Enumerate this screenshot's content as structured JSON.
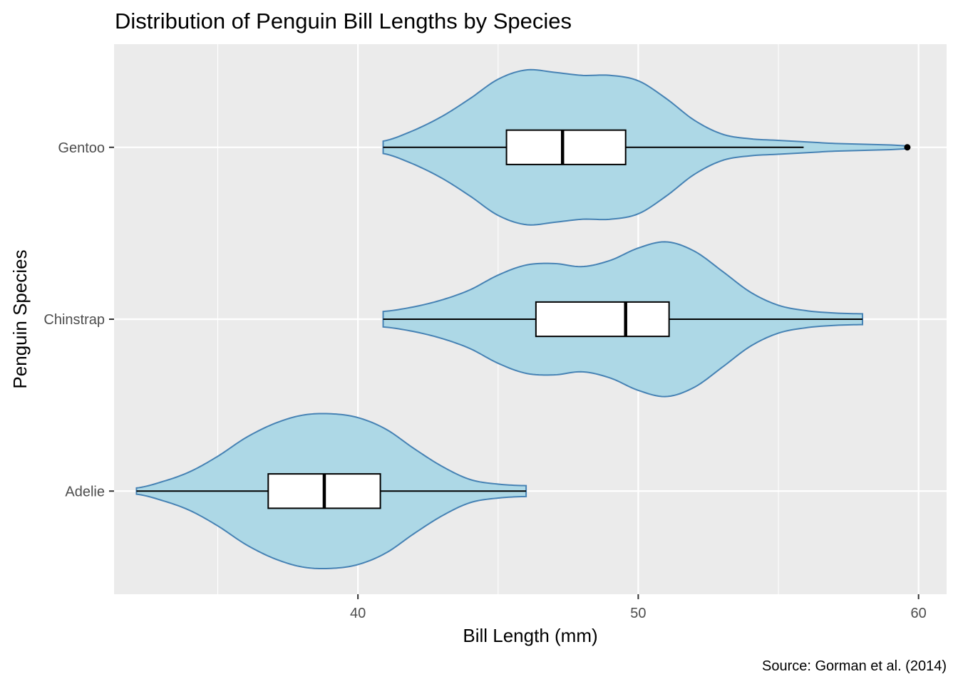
{
  "chart_data": {
    "type": "violin",
    "title": "Distribution of Penguin Bill Lengths by Species",
    "xlabel": "Bill Length (mm)",
    "ylabel": "Penguin Species",
    "caption": "Source: Gorman et al. (2014)",
    "orientation": "horizontal",
    "xlim": [
      31.3,
      61.0
    ],
    "xticks": [
      40,
      50,
      60
    ],
    "categories": [
      "Adelie",
      "Chinstrap",
      "Gentoo"
    ],
    "grid": true,
    "legend": "none",
    "colors": {
      "panel_bg": "#ebebeb",
      "grid": "#ffffff",
      "violin_fill": "#add8e6",
      "violin_stroke": "#4682b4",
      "box_fill": "#ffffff",
      "box_stroke": "#000000"
    },
    "series": [
      {
        "species": "Adelie",
        "box": {
          "whisker_low": 32.1,
          "q1": 36.8,
          "median": 38.8,
          "q3": 40.8,
          "whisker_high": 46.0,
          "outliers": []
        },
        "violin": {
          "min": 32.1,
          "max": 46.0,
          "x": [
            32.1,
            33.0,
            34.0,
            35.0,
            36.0,
            37.0,
            38.0,
            39.0,
            40.0,
            41.0,
            42.0,
            43.0,
            44.0,
            45.0,
            46.0
          ],
          "density": [
            0.04,
            0.12,
            0.25,
            0.45,
            0.69,
            0.87,
            0.98,
            1.0,
            0.95,
            0.8,
            0.55,
            0.32,
            0.15,
            0.09,
            0.07
          ]
        }
      },
      {
        "species": "Chinstrap",
        "box": {
          "whisker_low": 40.9,
          "q1": 46.35,
          "median": 49.55,
          "q3": 51.1,
          "whisker_high": 58.0,
          "outliers": []
        },
        "violin": {
          "min": 40.9,
          "max": 58.0,
          "x": [
            40.9,
            42.0,
            43.0,
            44.0,
            45.0,
            46.0,
            47.0,
            48.0,
            49.0,
            50.0,
            51.0,
            52.0,
            53.0,
            54.0,
            55.0,
            56.0,
            57.0,
            58.0
          ],
          "density": [
            0.1,
            0.16,
            0.25,
            0.38,
            0.57,
            0.7,
            0.72,
            0.68,
            0.76,
            0.92,
            1.0,
            0.88,
            0.62,
            0.35,
            0.18,
            0.11,
            0.08,
            0.07
          ]
        }
      },
      {
        "species": "Gentoo",
        "box": {
          "whisker_low": 40.9,
          "q1": 45.3,
          "median": 47.3,
          "q3": 49.55,
          "whisker_high": 55.9,
          "outliers": [
            59.6
          ]
        },
        "violin": {
          "min": 40.9,
          "max": 59.6,
          "x": [
            40.9,
            42.0,
            43.0,
            44.0,
            45.0,
            46.0,
            47.0,
            48.0,
            49.0,
            50.0,
            51.0,
            52.0,
            53.0,
            54.0,
            55.0,
            56.0,
            57.0,
            58.0,
            59.0,
            59.6
          ],
          "density": [
            0.08,
            0.22,
            0.4,
            0.63,
            0.88,
            1.0,
            0.97,
            0.93,
            0.93,
            0.86,
            0.63,
            0.35,
            0.17,
            0.11,
            0.09,
            0.07,
            0.05,
            0.04,
            0.03,
            0.02
          ]
        }
      }
    ]
  }
}
